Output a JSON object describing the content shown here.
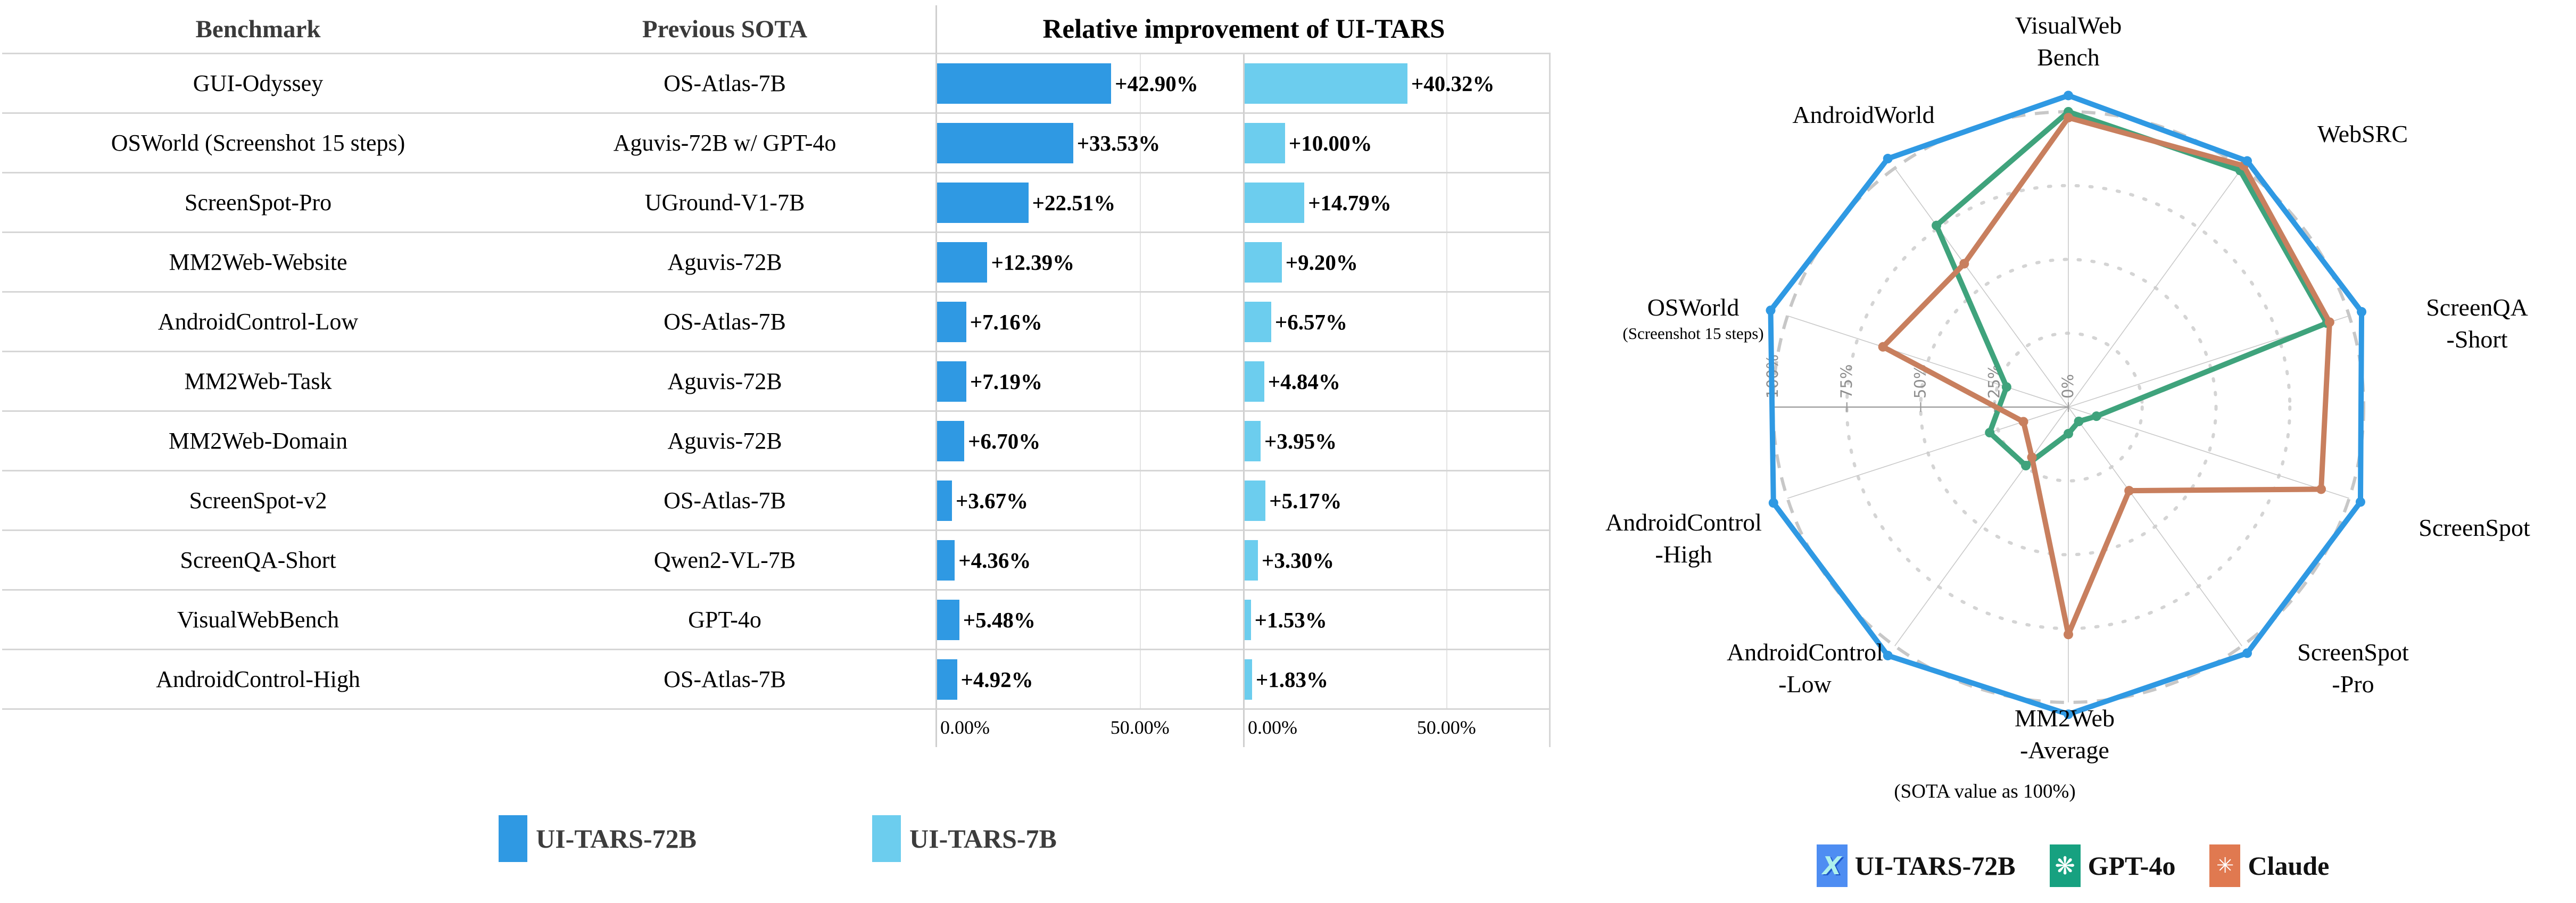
{
  "table": {
    "headers": {
      "benchmark": "Benchmark",
      "previous_sota": "Previous SOTA",
      "improvement": "Relative improvement of UI-TARS"
    },
    "rows": [
      {
        "benchmark": "GUI-Odyssey",
        "previous_sota": "OS-Atlas-7B",
        "label_72b": "+42.90%",
        "label_7b": "+40.32%",
        "value_72b": 42.9,
        "value_7b": 40.32
      },
      {
        "benchmark": "OSWorld (Screenshot 15 steps)",
        "previous_sota": "Aguvis-72B w/ GPT-4o",
        "label_72b": "+33.53%",
        "label_7b": "+10.00%",
        "value_72b": 33.53,
        "value_7b": 10.0
      },
      {
        "benchmark": "ScreenSpot-Pro",
        "previous_sota": "UGround-V1-7B",
        "label_72b": "+22.51%",
        "label_7b": "+14.79%",
        "value_72b": 22.51,
        "value_7b": 14.79
      },
      {
        "benchmark": "MM2Web-Website",
        "previous_sota": "Aguvis-72B",
        "label_72b": "+12.39%",
        "label_7b": "+9.20%",
        "value_72b": 12.39,
        "value_7b": 9.2
      },
      {
        "benchmark": "AndroidControl-Low",
        "previous_sota": "OS-Atlas-7B",
        "label_72b": "+7.16%",
        "label_7b": "+6.57%",
        "value_72b": 7.16,
        "value_7b": 6.57
      },
      {
        "benchmark": "MM2Web-Task",
        "previous_sota": "Aguvis-72B",
        "label_72b": "+7.19%",
        "label_7b": "+4.84%",
        "value_72b": 7.19,
        "value_7b": 4.84
      },
      {
        "benchmark": "MM2Web-Domain",
        "previous_sota": "Aguvis-72B",
        "label_72b": "+6.70%",
        "label_7b": "+3.95%",
        "value_72b": 6.7,
        "value_7b": 3.95
      },
      {
        "benchmark": "ScreenSpot-v2",
        "previous_sota": "OS-Atlas-7B",
        "label_72b": "+3.67%",
        "label_7b": "+5.17%",
        "value_72b": 3.67,
        "value_7b": 5.17
      },
      {
        "benchmark": "ScreenQA-Short",
        "previous_sota": "Qwen2-VL-7B",
        "label_72b": "+4.36%",
        "label_7b": "+3.30%",
        "value_72b": 4.36,
        "value_7b": 3.3
      },
      {
        "benchmark": "VisualWebBench",
        "previous_sota": "GPT-4o",
        "label_72b": "+5.48%",
        "label_7b": "+1.53%",
        "value_72b": 5.48,
        "value_7b": 1.53
      },
      {
        "benchmark": "AndroidControl-High",
        "previous_sota": "OS-Atlas-7B",
        "label_72b": "+4.92%",
        "label_7b": "+1.83%",
        "value_72b": 4.92,
        "value_7b": 1.83
      }
    ],
    "axis": {
      "tick_zero": "0.00%",
      "tick_fifty": "50.00%",
      "axis_max": 75.4
    },
    "legend": [
      {
        "label": "UI-TARS-72B",
        "color": "#2f99e3"
      },
      {
        "label": "UI-TARS-7B",
        "color": "#6ccdee"
      }
    ]
  },
  "radar": {
    "note": "(SOTA value as 100%)",
    "tick_labels": [
      {
        "text": "0%",
        "r": 0
      },
      {
        "text": "25%",
        "r": 25
      },
      {
        "text": "50%",
        "r": 50
      },
      {
        "text": "75%",
        "r": 75
      },
      {
        "text": "100%",
        "r": 100
      }
    ],
    "axes": [
      {
        "label": "VisualWeb\nBench"
      },
      {
        "label": "WebSRC"
      },
      {
        "label": "ScreenQA\n-Short"
      },
      {
        "label": "ScreenSpot"
      },
      {
        "label": "ScreenSpot\n-Pro"
      },
      {
        "label": "MM2Web\n-Average"
      },
      {
        "label": "AndroidControl\n-Low"
      },
      {
        "label": "AndroidControl\n-High"
      },
      {
        "label": "OSWorld",
        "sublabel": "(Screenshot 15 steps)"
      },
      {
        "label": "AndroidWorld"
      }
    ],
    "series": [
      {
        "name": "GPT-4o",
        "color": "#3fa37c",
        "icon_bg": "#17a180",
        "icon_glyph": "❋",
        "values": [
          100,
          99,
          92,
          10,
          6,
          9,
          24.5,
          28,
          22,
          76
        ]
      },
      {
        "name": "Claude",
        "color": "#c87f5e",
        "icon_bg": "#e07950",
        "icon_glyph": "✳",
        "values": [
          98,
          101,
          93,
          90,
          35,
          77,
          21,
          16,
          66,
          60
        ]
      },
      {
        "name": "UI-TARS-72B",
        "color": "#2f99e3",
        "icon_bg": "#4e8df2",
        "icon_glyph": "X",
        "values": [
          105.5,
          103,
          104.4,
          104,
          103,
          104,
          104,
          105,
          106,
          104
        ]
      }
    ],
    "legend_order": [
      "UI-TARS-72B",
      "GPT-4o",
      "Claude"
    ]
  },
  "chart_data": [
    {
      "type": "bar",
      "title": "Relative improvement of UI-TARS",
      "orientation": "horizontal",
      "categories": [
        "GUI-Odyssey",
        "OSWorld (Screenshot 15 steps)",
        "ScreenSpot-Pro",
        "MM2Web-Website",
        "AndroidControl-Low",
        "MM2Web-Task",
        "MM2Web-Domain",
        "ScreenSpot-v2",
        "ScreenQA-Short",
        "VisualWebBench",
        "AndroidControl-High"
      ],
      "previous_sota": [
        "OS-Atlas-7B",
        "Aguvis-72B w/ GPT-4o",
        "UGround-V1-7B",
        "Aguvis-72B",
        "OS-Atlas-7B",
        "Aguvis-72B",
        "Aguvis-72B",
        "OS-Atlas-7B",
        "Qwen2-VL-7B",
        "GPT-4o",
        "OS-Atlas-7B"
      ],
      "series": [
        {
          "name": "UI-TARS-72B",
          "values": [
            42.9,
            33.53,
            22.51,
            12.39,
            7.16,
            7.19,
            6.7,
            3.67,
            4.36,
            5.48,
            4.92
          ]
        },
        {
          "name": "UI-TARS-7B",
          "values": [
            40.32,
            10.0,
            14.79,
            9.2,
            6.57,
            4.84,
            3.95,
            5.17,
            3.3,
            1.53,
            1.83
          ]
        }
      ],
      "xlabel": "",
      "ylabel": "",
      "xlim": [
        0,
        75.4
      ],
      "x_ticks": [
        "0.00%",
        "50.00%"
      ],
      "grid": true,
      "legend_position": "bottom"
    },
    {
      "type": "radar",
      "title": "(SOTA value as 100%)",
      "categories": [
        "VisualWebBench",
        "WebSRC",
        "ScreenQA-Short",
        "ScreenSpot",
        "ScreenSpot-Pro",
        "MM2Web-Average",
        "AndroidControl-Low",
        "AndroidControl-High",
        "OSWorld (Screenshot 15 steps)",
        "AndroidWorld"
      ],
      "rlim": [
        0,
        100
      ],
      "r_ticks": [
        "0%",
        "25%",
        "50%",
        "75%",
        "100%"
      ],
      "series": [
        {
          "name": "UI-TARS-72B",
          "values": [
            105.5,
            103,
            104.4,
            104,
            103,
            104,
            104,
            105,
            106,
            104
          ]
        },
        {
          "name": "GPT-4o",
          "values": [
            100,
            99,
            92,
            10,
            6,
            9,
            24.5,
            28,
            22,
            76
          ]
        },
        {
          "name": "Claude",
          "values": [
            98,
            101,
            93,
            90,
            35,
            77,
            21,
            16,
            66,
            60
          ]
        }
      ],
      "legend_position": "bottom"
    }
  ]
}
